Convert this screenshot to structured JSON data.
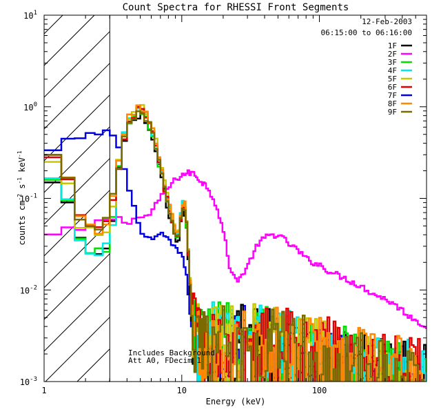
{
  "chart_data": {
    "type": "line",
    "title": "Count Spectra for RHESSI Front Segments",
    "xlabel": "Energy (keV)",
    "ylabel": "counts cm^-2 s^-1 keV^-1",
    "ylabel_parts": {
      "a": "counts cm",
      "b": "-2",
      "c": " s",
      "d": "-1",
      "e": " keV",
      "f": "-1"
    },
    "xscale": "log",
    "yscale": "log",
    "xlim": [
      1,
      600
    ],
    "ylim": [
      0.001,
      10
    ],
    "x_ticks": [
      {
        "v": 1,
        "label": "1"
      },
      {
        "v": 10,
        "label": "10"
      },
      {
        "v": 100,
        "label": "100"
      }
    ],
    "y_ticks": [
      {
        "v": 0.001,
        "base": "10",
        "exp": "-3"
      },
      {
        "v": 0.01,
        "base": "10",
        "exp": "-2"
      },
      {
        "v": 0.1,
        "base": "10",
        "exp": "-1"
      },
      {
        "v": 1,
        "base": "10",
        "exp": "0"
      },
      {
        "v": 10,
        "base": "10",
        "exp": "1"
      }
    ],
    "info_lines": [
      "12-Feb-2003",
      "06:15:00 to 06:16:00"
    ],
    "annotations": [
      "Includes Background",
      "Att A0, FDecim 1"
    ],
    "hatched_region": {
      "x_from": 1,
      "x_to": 3
    },
    "legend_position": "top-right",
    "series": [
      {
        "name": "1F",
        "color": "#000000"
      },
      {
        "name": "2F",
        "color": "#ff00ff"
      },
      {
        "name": "3F",
        "color": "#00e000"
      },
      {
        "name": "4F",
        "color": "#00e8e8"
      },
      {
        "name": "5F",
        "color": "#c8c800"
      },
      {
        "name": "6F",
        "color": "#e00000"
      },
      {
        "name": "7F",
        "color": "#0000e0"
      },
      {
        "name": "8F",
        "color": "#ff8800"
      },
      {
        "name": "9F",
        "color": "#7a6a00"
      }
    ],
    "thermal_shape": [
      [
        1.0,
        0.22
      ],
      [
        1.33,
        0.3
      ],
      [
        1.67,
        0.07
      ],
      [
        2.0,
        0.05
      ],
      [
        2.33,
        0.045
      ],
      [
        2.67,
        0.045
      ],
      [
        3.0,
        0.06
      ],
      [
        3.33,
        0.15
      ],
      [
        3.67,
        0.35
      ],
      [
        4.0,
        0.62
      ],
      [
        4.33,
        0.75
      ],
      [
        4.67,
        0.88
      ],
      [
        5.0,
        0.95
      ],
      [
        5.33,
        0.85
      ],
      [
        5.67,
        0.7
      ],
      [
        6.0,
        0.55
      ],
      [
        6.33,
        0.45
      ],
      [
        6.67,
        0.3
      ],
      [
        7.0,
        0.2
      ],
      [
        7.33,
        0.15
      ],
      [
        7.67,
        0.11
      ],
      [
        8.0,
        0.085
      ],
      [
        8.33,
        0.065
      ],
      [
        8.67,
        0.05
      ],
      [
        9.0,
        0.04
      ],
      [
        9.33,
        0.035
      ],
      [
        9.67,
        0.05
      ],
      [
        10.0,
        0.075
      ],
      [
        10.33,
        0.09
      ],
      [
        10.67,
        0.07
      ],
      [
        11.0,
        0.04
      ],
      [
        11.33,
        0.015
      ],
      [
        11.67,
        0.008
      ],
      [
        12.0,
        0.004
      ],
      [
        12.33,
        0.003
      ],
      [
        13.0,
        0.0025
      ],
      [
        14,
        0.002
      ],
      [
        16,
        0.0022
      ],
      [
        18,
        0.0025
      ],
      [
        20,
        0.0025
      ],
      [
        25,
        0.002
      ],
      [
        30,
        0.0025
      ],
      [
        40,
        0.0025
      ],
      [
        50,
        0.0022
      ],
      [
        60,
        0.002
      ],
      [
        80,
        0.002
      ],
      [
        100,
        0.0018
      ],
      [
        130,
        0.0015
      ],
      [
        170,
        0.0013
      ],
      [
        220,
        0.0012
      ],
      [
        300,
        0.0011
      ],
      [
        400,
        0.001
      ],
      [
        600,
        0.0009
      ]
    ],
    "series_2F": [
      [
        1.0,
        0.035
      ],
      [
        1.33,
        0.045
      ],
      [
        1.67,
        0.045
      ],
      [
        2.0,
        0.045
      ],
      [
        2.33,
        0.05
      ],
      [
        2.67,
        0.06
      ],
      [
        3.0,
        0.06
      ],
      [
        3.5,
        0.06
      ],
      [
        4.0,
        0.055
      ],
      [
        4.5,
        0.06
      ],
      [
        5.0,
        0.062
      ],
      [
        5.5,
        0.063
      ],
      [
        6.0,
        0.07
      ],
      [
        6.5,
        0.085
      ],
      [
        7.0,
        0.1
      ],
      [
        8.0,
        0.13
      ],
      [
        9.0,
        0.16
      ],
      [
        10,
        0.18
      ],
      [
        11,
        0.19
      ],
      [
        12,
        0.19
      ],
      [
        13,
        0.17
      ],
      [
        14,
        0.15
      ],
      [
        15,
        0.14
      ],
      [
        16,
        0.12
      ],
      [
        17,
        0.1
      ],
      [
        18,
        0.08
      ],
      [
        19,
        0.06
      ],
      [
        20,
        0.045
      ],
      [
        21,
        0.03
      ],
      [
        22,
        0.02
      ],
      [
        23,
        0.015
      ],
      [
        25,
        0.013
      ],
      [
        27,
        0.014
      ],
      [
        30,
        0.018
      ],
      [
        33,
        0.025
      ],
      [
        36,
        0.032
      ],
      [
        40,
        0.037
      ],
      [
        45,
        0.04
      ],
      [
        50,
        0.04
      ],
      [
        55,
        0.036
      ],
      [
        60,
        0.032
      ],
      [
        70,
        0.027
      ],
      [
        80,
        0.022
      ],
      [
        90,
        0.02
      ],
      [
        100,
        0.019
      ],
      [
        110,
        0.017
      ],
      [
        130,
        0.015
      ],
      [
        160,
        0.013
      ],
      [
        200,
        0.011
      ],
      [
        250,
        0.009
      ],
      [
        300,
        0.008
      ],
      [
        350,
        0.007
      ],
      [
        400,
        0.006
      ],
      [
        450,
        0.0052
      ],
      [
        500,
        0.0047
      ],
      [
        550,
        0.0043
      ],
      [
        600,
        0.004
      ]
    ],
    "series_7F": [
      [
        1.0,
        0.28
      ],
      [
        1.33,
        0.38
      ],
      [
        1.67,
        0.45
      ],
      [
        2.0,
        0.5
      ],
      [
        2.33,
        0.53
      ],
      [
        2.67,
        0.53
      ],
      [
        3.0,
        0.5
      ],
      [
        3.33,
        0.46
      ],
      [
        3.67,
        0.3
      ],
      [
        4.0,
        0.15
      ],
      [
        4.33,
        0.1
      ],
      [
        4.67,
        0.07
      ],
      [
        5.0,
        0.045
      ],
      [
        5.33,
        0.035
      ],
      [
        6.0,
        0.035
      ],
      [
        7.0,
        0.04
      ],
      [
        8.0,
        0.035
      ],
      [
        9.0,
        0.03
      ],
      [
        10.0,
        0.025
      ],
      [
        11.0,
        0.012
      ],
      [
        12.0,
        0.003
      ],
      [
        13,
        0.0025
      ],
      [
        15,
        0.002
      ],
      [
        18,
        0.0025
      ],
      [
        22,
        0.002
      ],
      [
        28,
        0.0025
      ],
      [
        35,
        0.002
      ],
      [
        45,
        0.002
      ],
      [
        60,
        0.0018
      ],
      [
        80,
        0.0017
      ],
      [
        100,
        0.0015
      ],
      [
        130,
        0.0013
      ],
      [
        170,
        0.0012
      ],
      [
        220,
        0.0011
      ],
      [
        300,
        0.001
      ],
      [
        600,
        0.0009
      ]
    ],
    "series_scale": {
      "1F": [
        0.55,
        0.9
      ],
      "3F": [
        0.58,
        1.0
      ],
      "4F": [
        0.6,
        1.05
      ],
      "5F": [
        0.9,
        1.15
      ],
      "6F": [
        1.0,
        1.0
      ],
      "8F": [
        1.05,
        1.1
      ],
      "9F": [
        1.05,
        1.0
      ]
    }
  }
}
